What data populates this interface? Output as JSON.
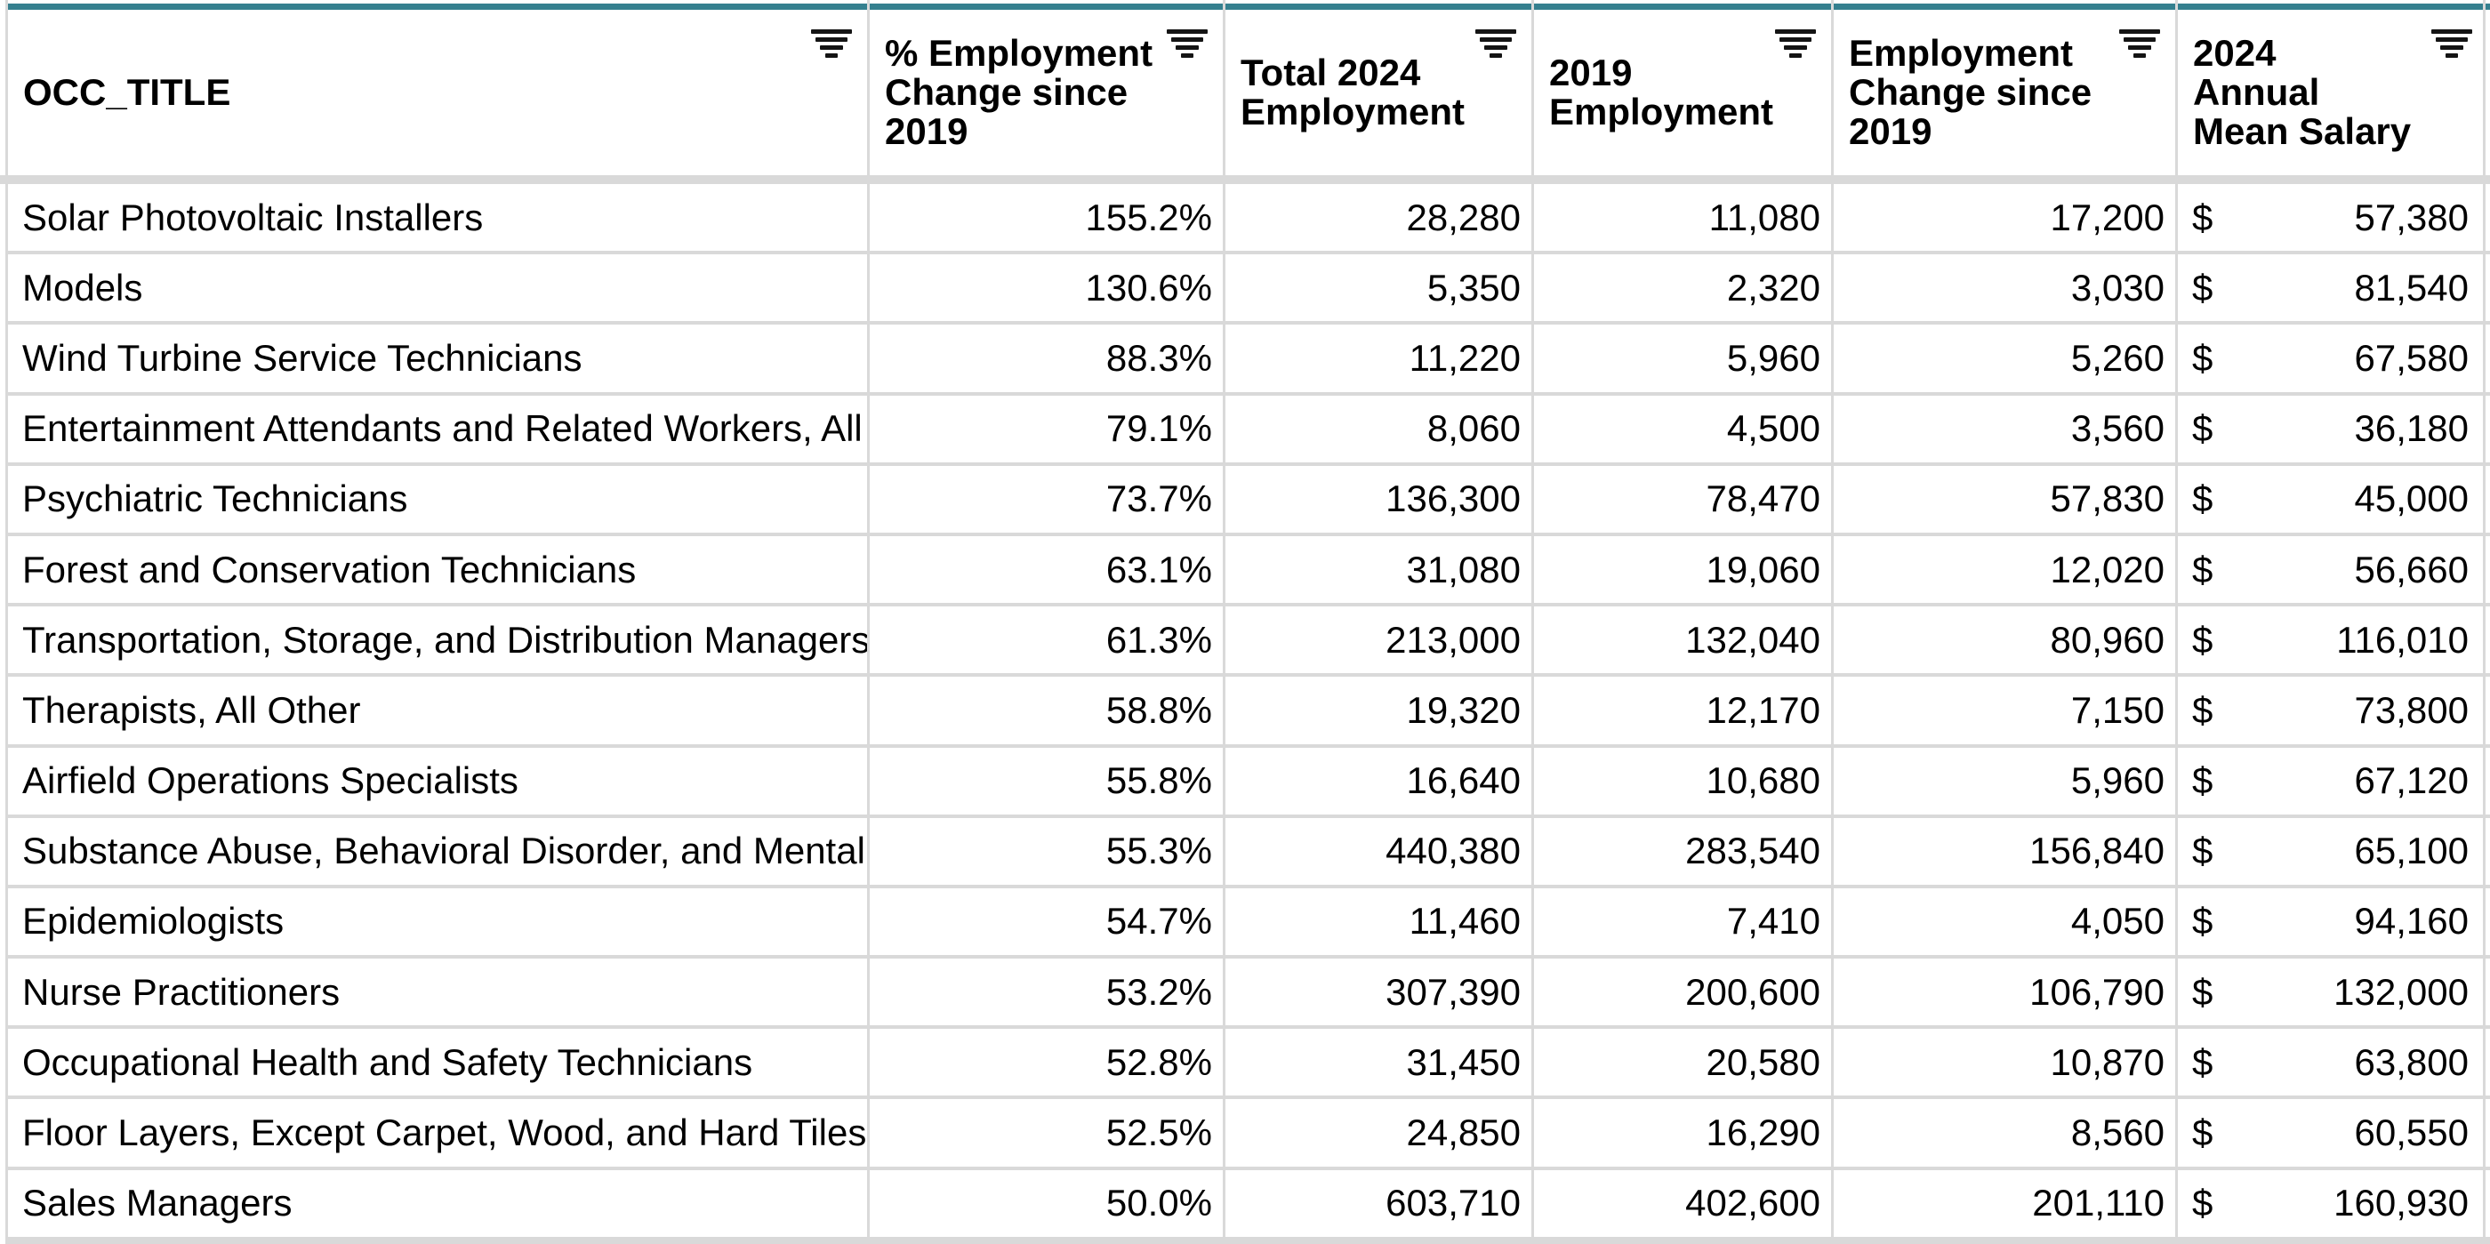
{
  "table": {
    "currency_symbol": "$",
    "colors": {
      "accent_teal": "#35808F",
      "gridline": "#D9D9D9",
      "separator_band": "#D9D9D9",
      "text": "#000000",
      "background": "#FFFFFF"
    },
    "columns": [
      {
        "id": "occ_title",
        "label": "OCC_TITLE"
      },
      {
        "id": "pct_change",
        "label": "% Employment\nChange since\n2019"
      },
      {
        "id": "total_2024",
        "label": "Total 2024\nEmployment"
      },
      {
        "id": "emp_2019",
        "label": "2019\nEmployment"
      },
      {
        "id": "change",
        "label": "Employment\nChange since\n2019"
      },
      {
        "id": "salary",
        "label": "2024\nAnnual\nMean Salary"
      }
    ],
    "rows": [
      {
        "title": "Solar Photovoltaic Installers",
        "pct_change": "155.2%",
        "total_2024": "28,280",
        "emp_2019": "11,080",
        "change": "17,200",
        "salary": "57,380"
      },
      {
        "title": "Models",
        "pct_change": "130.6%",
        "total_2024": "5,350",
        "emp_2019": "2,320",
        "change": "3,030",
        "salary": "81,540"
      },
      {
        "title": "Wind Turbine Service Technicians",
        "pct_change": "88.3%",
        "total_2024": "11,220",
        "emp_2019": "5,960",
        "change": "5,260",
        "salary": "67,580"
      },
      {
        "title": "Entertainment Attendants and Related Workers, All",
        "pct_change": "79.1%",
        "total_2024": "8,060",
        "emp_2019": "4,500",
        "change": "3,560",
        "salary": "36,180"
      },
      {
        "title": "Psychiatric Technicians",
        "pct_change": "73.7%",
        "total_2024": "136,300",
        "emp_2019": "78,470",
        "change": "57,830",
        "salary": "45,000"
      },
      {
        "title": "Forest and Conservation Technicians",
        "pct_change": "63.1%",
        "total_2024": "31,080",
        "emp_2019": "19,060",
        "change": "12,020",
        "salary": "56,660"
      },
      {
        "title": "Transportation, Storage, and Distribution Managers",
        "pct_change": "61.3%",
        "total_2024": "213,000",
        "emp_2019": "132,040",
        "change": "80,960",
        "salary": "116,010"
      },
      {
        "title": "Therapists, All Other",
        "pct_change": "58.8%",
        "total_2024": "19,320",
        "emp_2019": "12,170",
        "change": "7,150",
        "salary": "73,800"
      },
      {
        "title": "Airfield Operations Specialists",
        "pct_change": "55.8%",
        "total_2024": "16,640",
        "emp_2019": "10,680",
        "change": "5,960",
        "salary": "67,120"
      },
      {
        "title": "Substance Abuse, Behavioral Disorder, and Mental",
        "pct_change": "55.3%",
        "total_2024": "440,380",
        "emp_2019": "283,540",
        "change": "156,840",
        "salary": "65,100"
      },
      {
        "title": "Epidemiologists",
        "pct_change": "54.7%",
        "total_2024": "11,460",
        "emp_2019": "7,410",
        "change": "4,050",
        "salary": "94,160"
      },
      {
        "title": "Nurse Practitioners",
        "pct_change": "53.2%",
        "total_2024": "307,390",
        "emp_2019": "200,600",
        "change": "106,790",
        "salary": "132,000"
      },
      {
        "title": "Occupational Health and Safety Technicians",
        "pct_change": "52.8%",
        "total_2024": "31,450",
        "emp_2019": "20,580",
        "change": "10,870",
        "salary": "63,800"
      },
      {
        "title": "Floor Layers, Except Carpet, Wood, and Hard Tiles",
        "pct_change": "52.5%",
        "total_2024": "24,850",
        "emp_2019": "16,290",
        "change": "8,560",
        "salary": "60,550"
      },
      {
        "title": "Sales Managers",
        "pct_change": "50.0%",
        "total_2024": "603,710",
        "emp_2019": "402,600",
        "change": "201,110",
        "salary": "160,930"
      }
    ]
  }
}
